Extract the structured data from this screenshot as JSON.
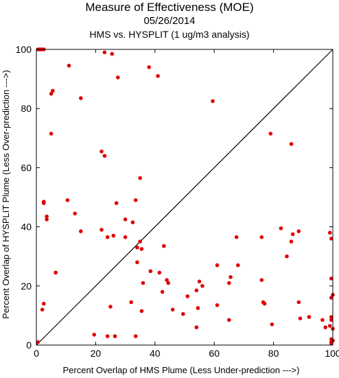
{
  "chart_data": {
    "type": "scatter",
    "title": "Measure of Effectiveness (MOE)",
    "subtitle_date": "05/26/2014",
    "subtitle_analysis": "HMS vs. HYSPLIT  (1 ug/m3 analysis)",
    "xlabel": "Percent Overlap of HMS Plume (Less Under-prediction --->)",
    "ylabel": "Percent Overlap of HYSPLIT Plume (Less Over-prediction --->)",
    "xlim": [
      0,
      100
    ],
    "ylim": [
      0,
      100
    ],
    "xticks": [
      0,
      20,
      40,
      60,
      80,
      100
    ],
    "yticks": [
      0,
      20,
      40,
      60,
      80,
      100
    ],
    "grid": false,
    "marker_color": "#e00000",
    "reference_line": "y = x",
    "points": [
      [
        0.5,
        100
      ],
      [
        1,
        100
      ],
      [
        1.5,
        100
      ],
      [
        2,
        100
      ],
      [
        2.5,
        100
      ],
      [
        11,
        94.5
      ],
      [
        23,
        99
      ],
      [
        25.5,
        98.5
      ],
      [
        38,
        94
      ],
      [
        41,
        91
      ],
      [
        27.5,
        90.5
      ],
      [
        5,
        85
      ],
      [
        5.5,
        86
      ],
      [
        15,
        83.5
      ],
      [
        59.5,
        82.5
      ],
      [
        5,
        71.5
      ],
      [
        79,
        71.5
      ],
      [
        86,
        68
      ],
      [
        22,
        65.5
      ],
      [
        23,
        64
      ],
      [
        35,
        56.5
      ],
      [
        2.5,
        48
      ],
      [
        2.5,
        48.5
      ],
      [
        10.5,
        49
      ],
      [
        27,
        48
      ],
      [
        33.5,
        49
      ],
      [
        13,
        44.5
      ],
      [
        3.5,
        43.5
      ],
      [
        3.5,
        42.5
      ],
      [
        30,
        42.5
      ],
      [
        32.5,
        41.5
      ],
      [
        22,
        39
      ],
      [
        15,
        38.5
      ],
      [
        24,
        36.5
      ],
      [
        26,
        37
      ],
      [
        30,
        36.5
      ],
      [
        82.5,
        39.5
      ],
      [
        88.5,
        38.5
      ],
      [
        99,
        38
      ],
      [
        99.5,
        36
      ],
      [
        35,
        35
      ],
      [
        34,
        33
      ],
      [
        43,
        33.5
      ],
      [
        35.5,
        32.5
      ],
      [
        67.5,
        36.5
      ],
      [
        76,
        36.5
      ],
      [
        86,
        35
      ],
      [
        86.5,
        37.5
      ],
      [
        84.5,
        30
      ],
      [
        6.5,
        24.5
      ],
      [
        6.5,
        24.5
      ],
      [
        34,
        28
      ],
      [
        38.5,
        25
      ],
      [
        41.5,
        24.5
      ],
      [
        61,
        27
      ],
      [
        68,
        27
      ],
      [
        36,
        21
      ],
      [
        44,
        22
      ],
      [
        44.5,
        21
      ],
      [
        55,
        21.5
      ],
      [
        56,
        20
      ],
      [
        65,
        21
      ],
      [
        65.5,
        23
      ],
      [
        76,
        22
      ],
      [
        54,
        18.5
      ],
      [
        42.5,
        18
      ],
      [
        99.5,
        22.5
      ],
      [
        2.5,
        14
      ],
      [
        2,
        12
      ],
      [
        25,
        13
      ],
      [
        32,
        14.5
      ],
      [
        35.5,
        11.5
      ],
      [
        46,
        12
      ],
      [
        49.5,
        10.5
      ],
      [
        51,
        16.5
      ],
      [
        54.5,
        12.5
      ],
      [
        61,
        13.5
      ],
      [
        76.5,
        14.5
      ],
      [
        77,
        14
      ],
      [
        99.5,
        16
      ],
      [
        100,
        17
      ],
      [
        88.5,
        14.5
      ],
      [
        19.5,
        3.5
      ],
      [
        24,
        3
      ],
      [
        26.5,
        3
      ],
      [
        33.5,
        3
      ],
      [
        54,
        6
      ],
      [
        65,
        8.5
      ],
      [
        79.5,
        7
      ],
      [
        89,
        9
      ],
      [
        92,
        9.5
      ],
      [
        96.5,
        8.5
      ],
      [
        97.5,
        6
      ],
      [
        99,
        6.5
      ],
      [
        99.5,
        8.5
      ],
      [
        99.5,
        9.5
      ],
      [
        100,
        5.5
      ],
      [
        99.5,
        2
      ],
      [
        100,
        1.5
      ],
      [
        99.5,
        1
      ],
      [
        99.5,
        0.5
      ],
      [
        0.5,
        1
      ]
    ]
  }
}
